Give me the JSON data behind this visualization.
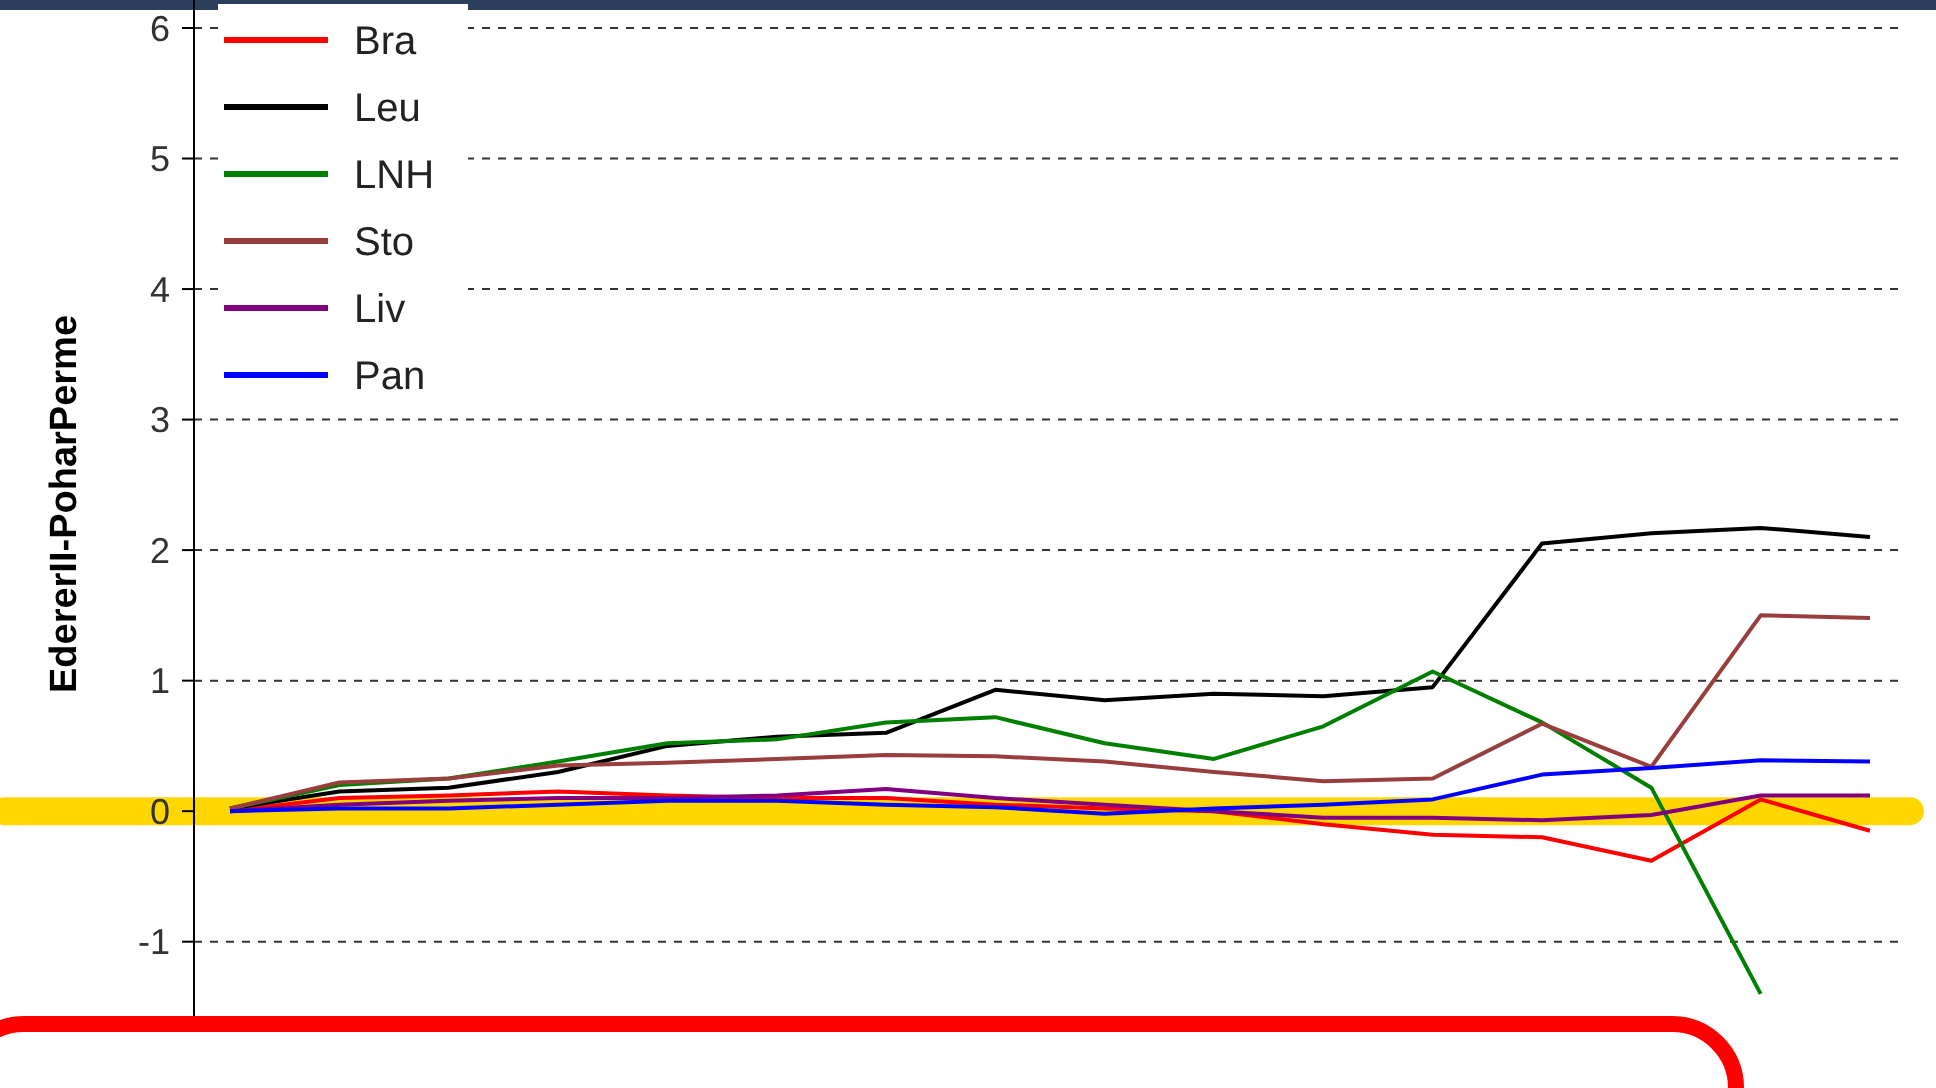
{
  "chart_data": {
    "type": "line",
    "ylabel": "EdererII-PoharPerme",
    "categories": [
      null,
      null,
      null,
      null,
      null,
      null,
      null,
      null,
      null,
      null,
      null,
      null,
      null,
      null,
      null,
      null
    ],
    "series": [
      {
        "name": "Bra",
        "color": "#ff0000",
        "values": [
          0,
          0.1,
          0.12,
          0.15,
          0.12,
          0.1,
          0.1,
          0.05,
          0.02,
          0,
          -0.1,
          -0.18,
          -0.2,
          -0.38,
          0.09,
          -0.15
        ]
      },
      {
        "name": "Leu",
        "color": "#000000",
        "values": [
          0.02,
          0.15,
          0.18,
          0.3,
          0.5,
          0.57,
          0.6,
          0.93,
          0.85,
          0.9,
          0.88,
          0.95,
          2.05,
          2.13,
          2.17,
          2.1
        ]
      },
      {
        "name": "LNH",
        "color": "#008000",
        "values": [
          0.02,
          0.2,
          0.25,
          0.38,
          0.52,
          0.55,
          0.68,
          0.72,
          0.52,
          0.4,
          0.65,
          1.07,
          0.68,
          0.18,
          -1.4,
          null
        ]
      },
      {
        "name": "Sto",
        "color": "#993d3d",
        "values": [
          0.02,
          0.22,
          0.25,
          0.35,
          0.37,
          0.4,
          0.43,
          0.42,
          0.38,
          0.3,
          0.23,
          0.25,
          0.67,
          0.34,
          1.5,
          1.48
        ]
      },
      {
        "name": "Liv",
        "color": "#800080",
        "values": [
          0,
          0.05,
          0.08,
          0.1,
          0.1,
          0.12,
          0.17,
          0.1,
          0.05,
          0,
          -0.05,
          -0.05,
          -0.07,
          -0.03,
          0.12,
          0.12
        ]
      },
      {
        "name": "Pan",
        "color": "#0000ff",
        "values": [
          0,
          0.02,
          0.02,
          0.05,
          0.08,
          0.08,
          0.05,
          0.03,
          -0.02,
          0.02,
          0.05,
          0.09,
          0.28,
          0.33,
          0.39,
          0.38
        ]
      }
    ],
    "ylim": [
      -1.6,
      6
    ],
    "yticks": [
      -1,
      0,
      1,
      2,
      3,
      4,
      5,
      6
    ],
    "grid": "y",
    "legend": "top left",
    "marker": "none",
    "line_style": "solid",
    "ref_lines": [
      {
        "axis": "y",
        "value": 0,
        "color": "#ffd700"
      }
    ]
  }
}
